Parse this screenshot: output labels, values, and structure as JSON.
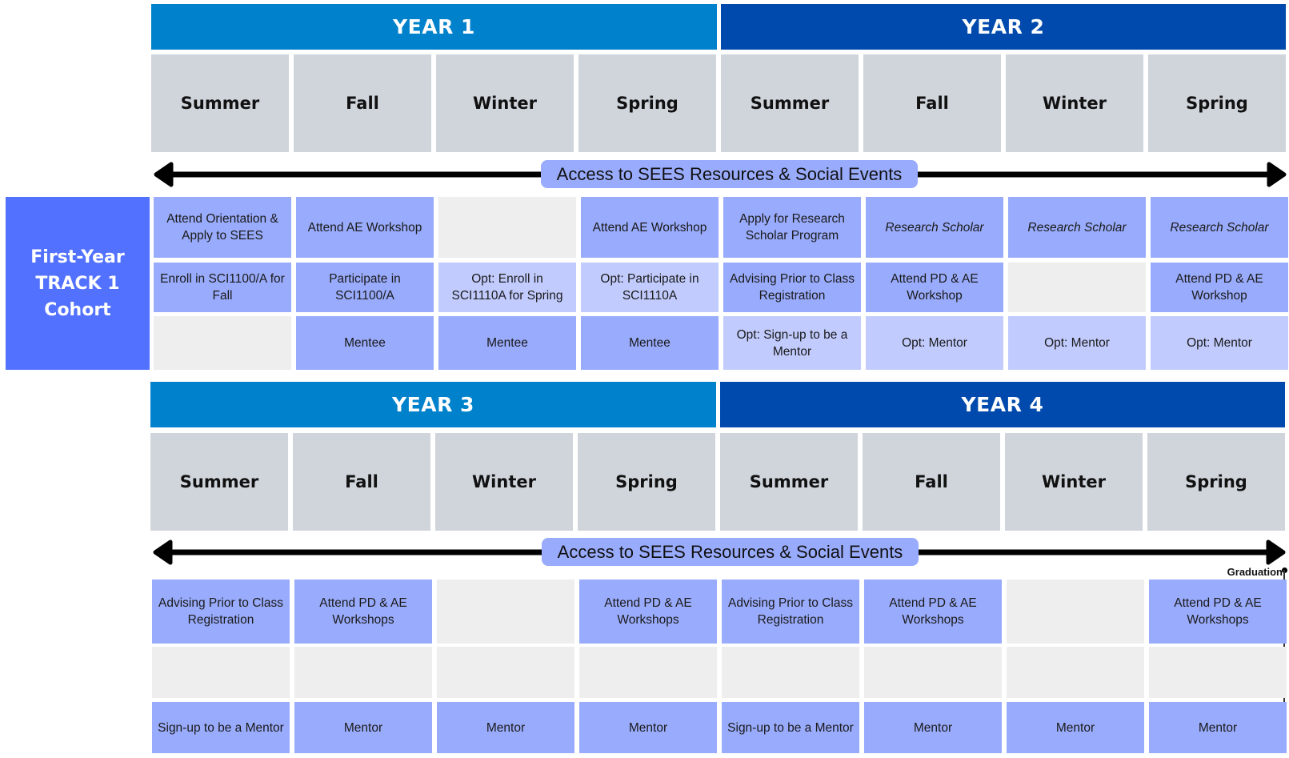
{
  "cohort": {
    "label_lines": [
      "First-Year",
      "TRACK 1",
      "Cohort"
    ]
  },
  "colors": {
    "year_odd": "#0081cc",
    "year_even": "#004aad",
    "season_bg": "#d0d5dc",
    "cell_main": "#99abfc",
    "cell_light": "#c1cbfd",
    "cell_empty": "#eeeeee",
    "cohort_bg": "#5271ff"
  },
  "timeline_label": "Access to SEES Resources & Social Events",
  "graduation_label": "Graduation",
  "years": [
    {
      "label": "YEAR 1"
    },
    {
      "label": "YEAR 2"
    },
    {
      "label": "YEAR 3"
    },
    {
      "label": "YEAR 4"
    }
  ],
  "seasons": [
    "Summer",
    "Fall",
    "Winter",
    "Spring"
  ],
  "top_grid": {
    "rows": [
      [
        {
          "text": "Attend Orientation & Apply to SEES",
          "style": "main"
        },
        {
          "text": "Attend AE Workshop",
          "style": "main"
        },
        {
          "text": "",
          "style": "empty"
        },
        {
          "text": "Attend AE Workshop",
          "style": "main"
        },
        {
          "text": "Apply for Research Scholar Program",
          "style": "main"
        },
        {
          "text": "Research Scholar",
          "style": "main-italic"
        },
        {
          "text": "Research Scholar",
          "style": "main-italic"
        },
        {
          "text": "Research Scholar",
          "style": "main-italic"
        }
      ],
      [
        {
          "text": "Enroll in SCI1100/A for Fall",
          "style": "main"
        },
        {
          "text": "Participate in SCI1100/A",
          "style": "main"
        },
        {
          "text": "Opt: Enroll in SCI1110A for Spring",
          "style": "light"
        },
        {
          "text": "Opt: Participate in SCI1110A",
          "style": "light"
        },
        {
          "text": "Advising Prior to Class Registration",
          "style": "main"
        },
        {
          "text": "Attend PD & AE Workshop",
          "style": "main"
        },
        {
          "text": "",
          "style": "empty"
        },
        {
          "text": "Attend PD & AE Workshop",
          "style": "main"
        }
      ],
      [
        {
          "text": "",
          "style": "empty"
        },
        {
          "text": "Mentee",
          "style": "main"
        },
        {
          "text": "Mentee",
          "style": "main"
        },
        {
          "text": "Mentee",
          "style": "main"
        },
        {
          "text": "Opt: Sign-up to be a Mentor",
          "style": "light"
        },
        {
          "text": "Opt: Mentor",
          "style": "light"
        },
        {
          "text": "Opt: Mentor",
          "style": "light"
        },
        {
          "text": "Opt: Mentor",
          "style": "light"
        }
      ]
    ]
  },
  "bottom_grid": {
    "rows": [
      [
        {
          "text": "Advising Prior to Class Registration",
          "style": "main"
        },
        {
          "text": "Attend PD & AE Workshops",
          "style": "main"
        },
        {
          "text": "",
          "style": "empty"
        },
        {
          "text": "Attend PD & AE Workshops",
          "style": "main"
        },
        {
          "text": "Advising Prior to Class Registration",
          "style": "main"
        },
        {
          "text": "Attend PD & AE Workshops",
          "style": "main"
        },
        {
          "text": "",
          "style": "empty"
        },
        {
          "text": "Attend PD & AE Workshops",
          "style": "main"
        }
      ],
      [
        {
          "text": "",
          "style": "empty"
        },
        {
          "text": "",
          "style": "empty"
        },
        {
          "text": "",
          "style": "empty"
        },
        {
          "text": "",
          "style": "empty"
        },
        {
          "text": "",
          "style": "empty"
        },
        {
          "text": "",
          "style": "empty"
        },
        {
          "text": "",
          "style": "empty"
        },
        {
          "text": "",
          "style": "empty"
        }
      ],
      [
        {
          "text": "Sign-up to be a Mentor",
          "style": "main"
        },
        {
          "text": "Mentor",
          "style": "main"
        },
        {
          "text": "Mentor",
          "style": "main"
        },
        {
          "text": "Mentor",
          "style": "main"
        },
        {
          "text": "Sign-up to be a Mentor",
          "style": "main"
        },
        {
          "text": "Mentor",
          "style": "main"
        },
        {
          "text": "Mentor",
          "style": "main"
        },
        {
          "text": "Mentor",
          "style": "main"
        }
      ]
    ]
  }
}
